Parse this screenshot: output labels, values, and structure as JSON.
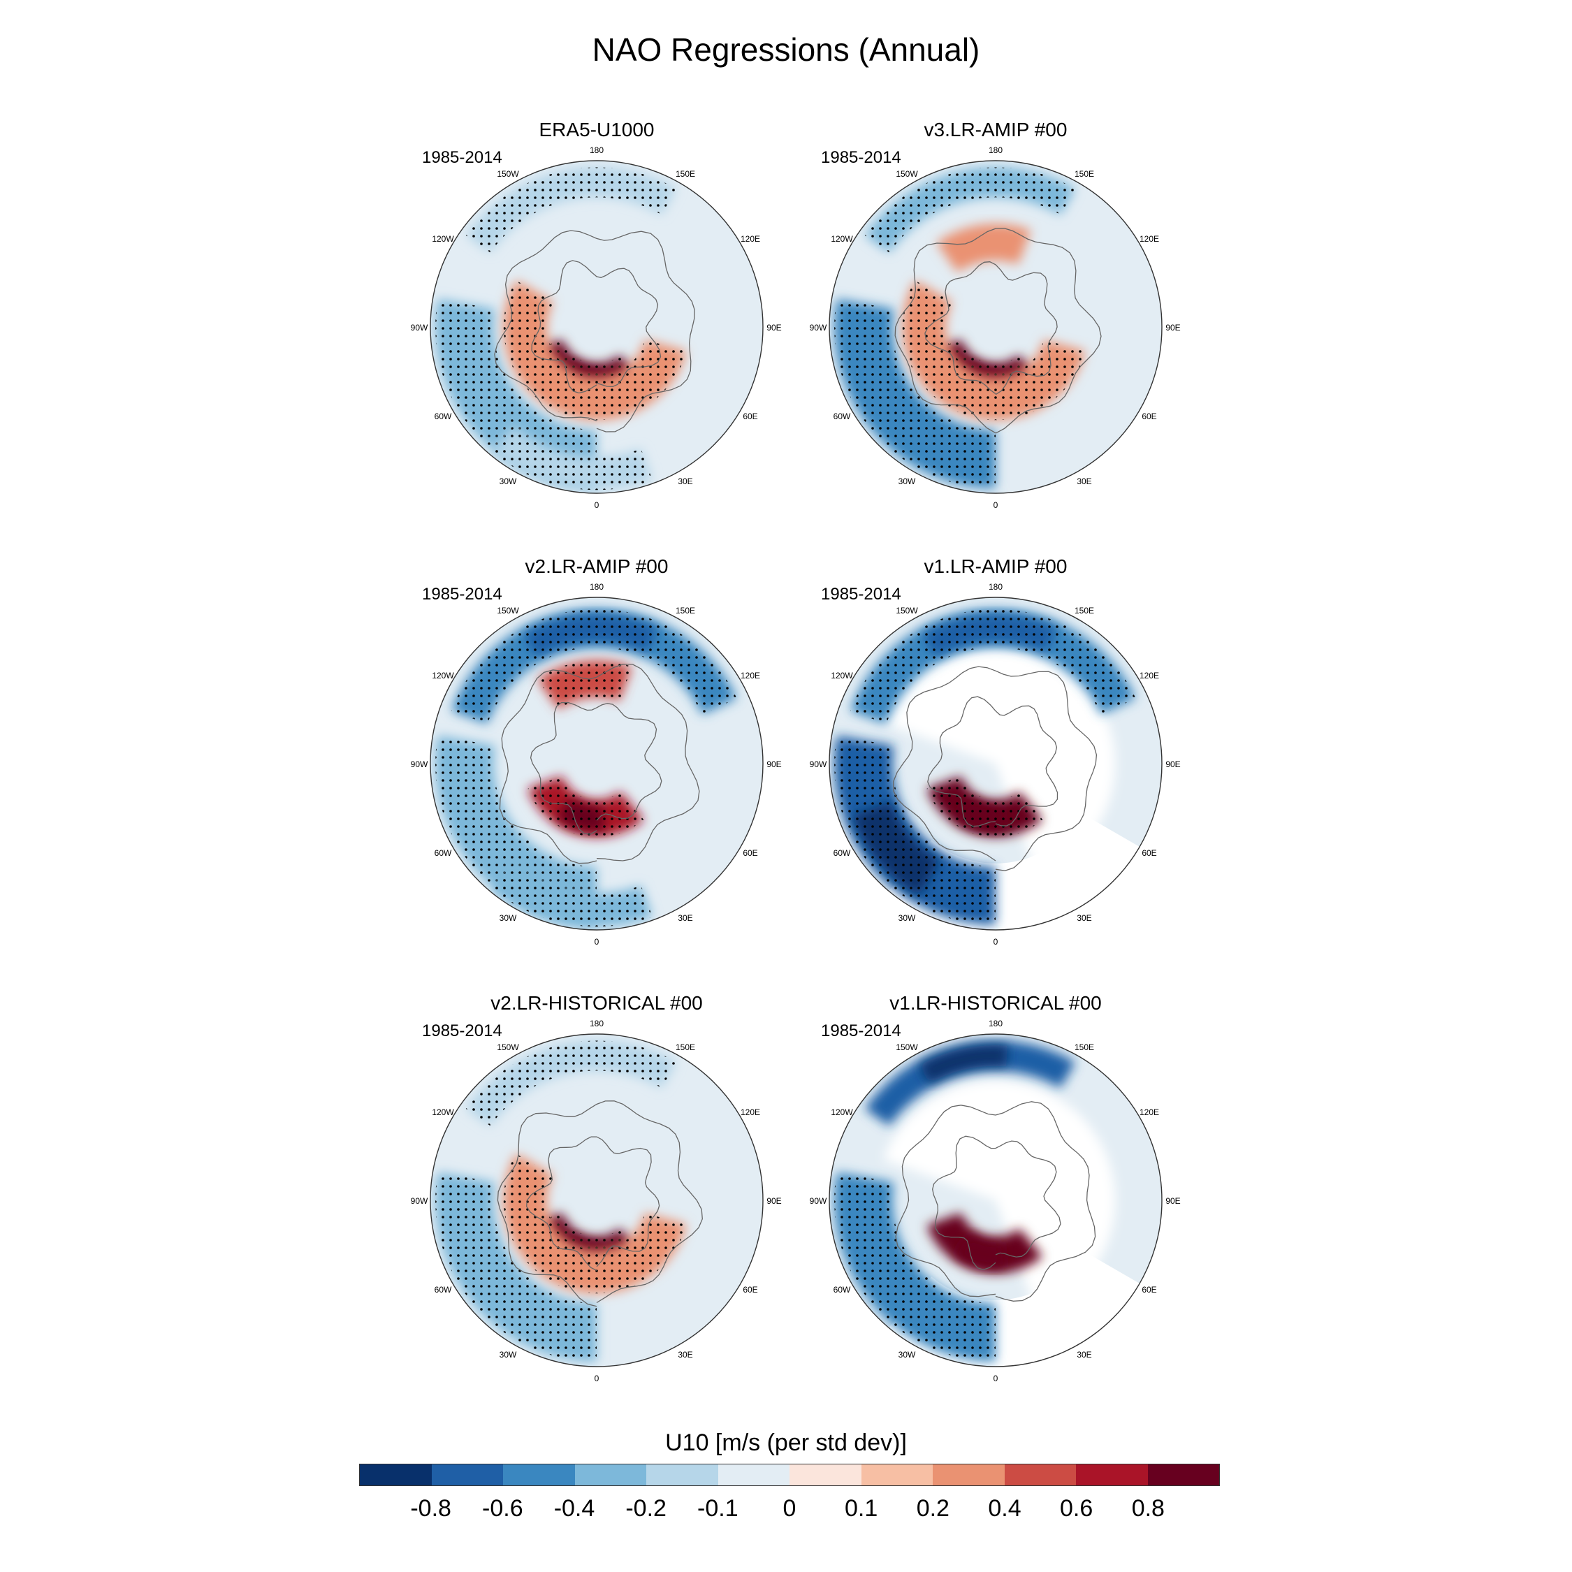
{
  "title": "NAO Regressions (Annual)",
  "lon_labels": [
    "180",
    "150E",
    "120E",
    "90E",
    "60E",
    "30E",
    "0",
    "30W",
    "60W",
    "90W",
    "120W",
    "150W"
  ],
  "panels": [
    {
      "title": "ERA5-U1000",
      "period": "1985-2014",
      "pattern": {
        "features": [
          {
            "kind": "ring_band",
            "sign": "neg",
            "level": -0.3,
            "sector": "atlantic_southwest",
            "stippled": true
          },
          {
            "kind": "arc_core",
            "sign": "pos",
            "level": 0.8,
            "sector": "north_atlantic",
            "stippled": true
          },
          {
            "kind": "ring_band",
            "sign": "pos",
            "level": 0.3,
            "sector": "subpolar",
            "stippled": true
          },
          {
            "kind": "blob",
            "sign": "neg",
            "level": -0.2,
            "sector": "north_pacific",
            "stippled": true
          },
          {
            "kind": "blob",
            "sign": "neg",
            "level": -0.2,
            "sector": "subtropical_atlantic",
            "stippled": true
          }
        ]
      }
    },
    {
      "title": "v3.LR-AMIP  #00",
      "period": "1985-2014",
      "pattern": {
        "features": [
          {
            "kind": "ring_band",
            "sign": "neg",
            "level": -0.5,
            "sector": "atlantic_southwest",
            "stippled": true
          },
          {
            "kind": "arc_core",
            "sign": "pos",
            "level": 0.8,
            "sector": "north_atlantic",
            "stippled": true
          },
          {
            "kind": "ring_band",
            "sign": "pos",
            "level": 0.2,
            "sector": "subpolar",
            "stippled": true
          },
          {
            "kind": "blob",
            "sign": "neg",
            "level": -0.3,
            "sector": "north_pacific",
            "stippled": true
          },
          {
            "kind": "blob",
            "sign": "pos",
            "level": 0.3,
            "sector": "arctic_pacific",
            "stippled": false
          }
        ]
      }
    },
    {
      "title": "v2.LR-AMIP  #00",
      "period": "1985-2014",
      "pattern": {
        "features": [
          {
            "kind": "ring_band",
            "sign": "neg",
            "level": -0.4,
            "sector": "atlantic_southwest",
            "stippled": true
          },
          {
            "kind": "arc_core",
            "sign": "pos",
            "level": 0.7,
            "sector": "north_atlantic",
            "stippled": true
          },
          {
            "kind": "arc_band",
            "sign": "neg",
            "level": -0.6,
            "sector": "pacific_jet",
            "stippled": true
          },
          {
            "kind": "blob",
            "sign": "pos",
            "level": 0.4,
            "sector": "arctic_pacific",
            "stippled": true
          },
          {
            "kind": "blob",
            "sign": "neg",
            "level": -0.3,
            "sector": "subtropical_atlantic",
            "stippled": true
          }
        ]
      }
    },
    {
      "title": "v1.LR-AMIP  #00",
      "period": "1985-2014",
      "pattern": {
        "features": [
          {
            "kind": "ring_band",
            "sign": "neg",
            "level": -0.8,
            "sector": "atlantic_southwest",
            "stippled": true
          },
          {
            "kind": "arc_core",
            "sign": "pos",
            "level": 0.8,
            "sector": "north_atlantic",
            "stippled": true
          },
          {
            "kind": "arc_band",
            "sign": "neg",
            "level": -0.6,
            "sector": "pacific_jet",
            "stippled": true
          },
          {
            "kind": "land_mask",
            "sign": "none",
            "level": 0,
            "sector": "land",
            "stippled": false
          }
        ]
      }
    },
    {
      "title": "v2.LR-HISTORICAL  #00",
      "period": "1985-2014",
      "pattern": {
        "features": [
          {
            "kind": "ring_band",
            "sign": "neg",
            "level": -0.4,
            "sector": "atlantic_southwest",
            "stippled": true
          },
          {
            "kind": "arc_core",
            "sign": "pos",
            "level": 0.8,
            "sector": "north_atlantic",
            "stippled": true
          },
          {
            "kind": "ring_band",
            "sign": "pos",
            "level": 0.3,
            "sector": "subpolar",
            "stippled": true
          },
          {
            "kind": "blob",
            "sign": "neg",
            "level": -0.2,
            "sector": "north_pacific",
            "stippled": true
          }
        ]
      }
    },
    {
      "title": "v1.LR-HISTORICAL  #00",
      "period": "1985-2014",
      "pattern": {
        "features": [
          {
            "kind": "ring_band",
            "sign": "neg",
            "level": -0.5,
            "sector": "atlantic_southwest",
            "stippled": true
          },
          {
            "kind": "arc_core",
            "sign": "pos",
            "level": 0.8,
            "sector": "north_atlantic",
            "stippled": false
          },
          {
            "kind": "blob",
            "sign": "neg",
            "level": -0.8,
            "sector": "north_pacific",
            "stippled": false
          },
          {
            "kind": "land_mask",
            "sign": "none",
            "level": 0,
            "sector": "land",
            "stippled": false
          }
        ]
      }
    }
  ],
  "colorbar": {
    "title": "U10 [m/s (per std dev)]",
    "colors": [
      "#08306b",
      "#1f5fa6",
      "#3a87c0",
      "#7db8da",
      "#b6d6e9",
      "#e3edf4",
      "#fbe5dc",
      "#f7bfa4",
      "#ea9272",
      "#cc4c44",
      "#aa1428",
      "#67001f"
    ],
    "tick_labels": [
      "-0.8",
      "-0.6",
      "-0.4",
      "-0.2",
      "-0.1",
      "0",
      "0.1",
      "0.2",
      "0.4",
      "0.6",
      "0.8"
    ],
    "levels": [
      -0.8,
      -0.6,
      -0.4,
      -0.2,
      -0.1,
      0,
      0.1,
      0.2,
      0.4,
      0.6,
      0.8
    ]
  }
}
